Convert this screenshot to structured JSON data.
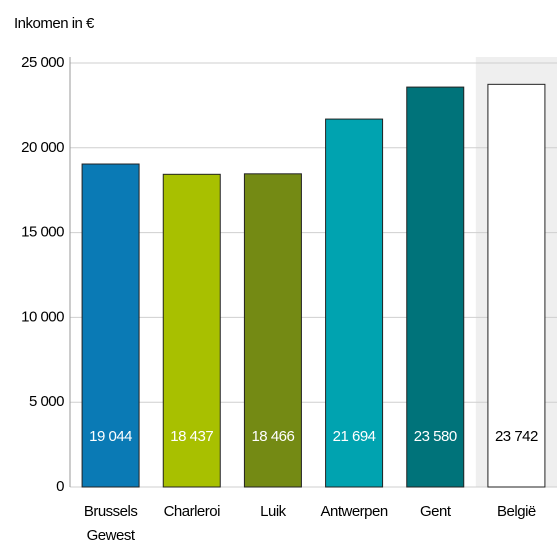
{
  "chart_data": {
    "type": "bar",
    "y_label": "Inkomen in €",
    "categories": [
      "Brussels Gewest",
      "Charleroi",
      "Luik",
      "Antwerpen",
      "Gent",
      "België"
    ],
    "values": [
      19044,
      18437,
      18466,
      21694,
      23580,
      23742
    ],
    "value_labels": [
      "19 044",
      "18 437",
      "18 466",
      "21 694",
      "23 580",
      "23 742"
    ],
    "colors": [
      "#0a7ab5",
      "#a8c000",
      "#748a14",
      "#00a3b0",
      "#00737a",
      "#ffffff"
    ],
    "label_colors": [
      "#ffffff",
      "#ffffff",
      "#ffffff",
      "#ffffff",
      "#ffffff",
      "#000000"
    ],
    "highlight_band": {
      "index": 5,
      "color": "#efefef"
    },
    "ylim": [
      0,
      25000
    ],
    "yticks": [
      {
        "value": 0,
        "label": "0"
      },
      {
        "value": 5000,
        "label": "5 000"
      },
      {
        "value": 10000,
        "label": "10 000"
      },
      {
        "value": 15000,
        "label": "15 000"
      },
      {
        "value": 20000,
        "label": "20 000"
      },
      {
        "value": 25000,
        "label": "25 000"
      }
    ],
    "grid": true
  }
}
